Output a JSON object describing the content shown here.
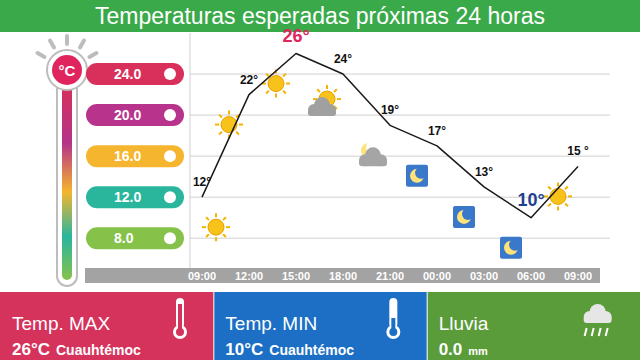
{
  "chart_data": {
    "type": "line",
    "title": "Temperaturas esperadas próximas 24 horas",
    "ylabel": "°C",
    "categories": [
      "09:00",
      "12:00",
      "15:00",
      "18:00",
      "21:00",
      "00:00",
      "03:00",
      "06:00",
      "09:00"
    ],
    "values": [
      12,
      22,
      26,
      24,
      19,
      17,
      13,
      10,
      15
    ],
    "value_labels": [
      "12°",
      "22°",
      "26°",
      "24°",
      "19°",
      "17°",
      "13°",
      "10°",
      "15 °"
    ],
    "color": "#1a1a1a",
    "ylim": [
      5,
      28
    ],
    "yticks": [
      {
        "value": 8,
        "label": "8.0"
      },
      {
        "value": 12,
        "label": "12.0"
      },
      {
        "value": 16,
        "label": "16.0"
      },
      {
        "value": 20,
        "label": "20.0"
      },
      {
        "value": 24,
        "label": "24.0"
      }
    ],
    "grid": true,
    "data_labels": true
  },
  "panels": [
    {
      "title": "Temp. MAX",
      "value": "26°C",
      "detail": "Cuauhtémoc",
      "color": "#d5325c"
    },
    {
      "title": "Temp. MIN",
      "value": "10°C",
      "detail": "Cuauhtémoc",
      "color": "#1c6fc4"
    },
    {
      "title": "Lluvia",
      "value": "0.0",
      "detail": "mm",
      "color": "#5b9c3a"
    }
  ]
}
